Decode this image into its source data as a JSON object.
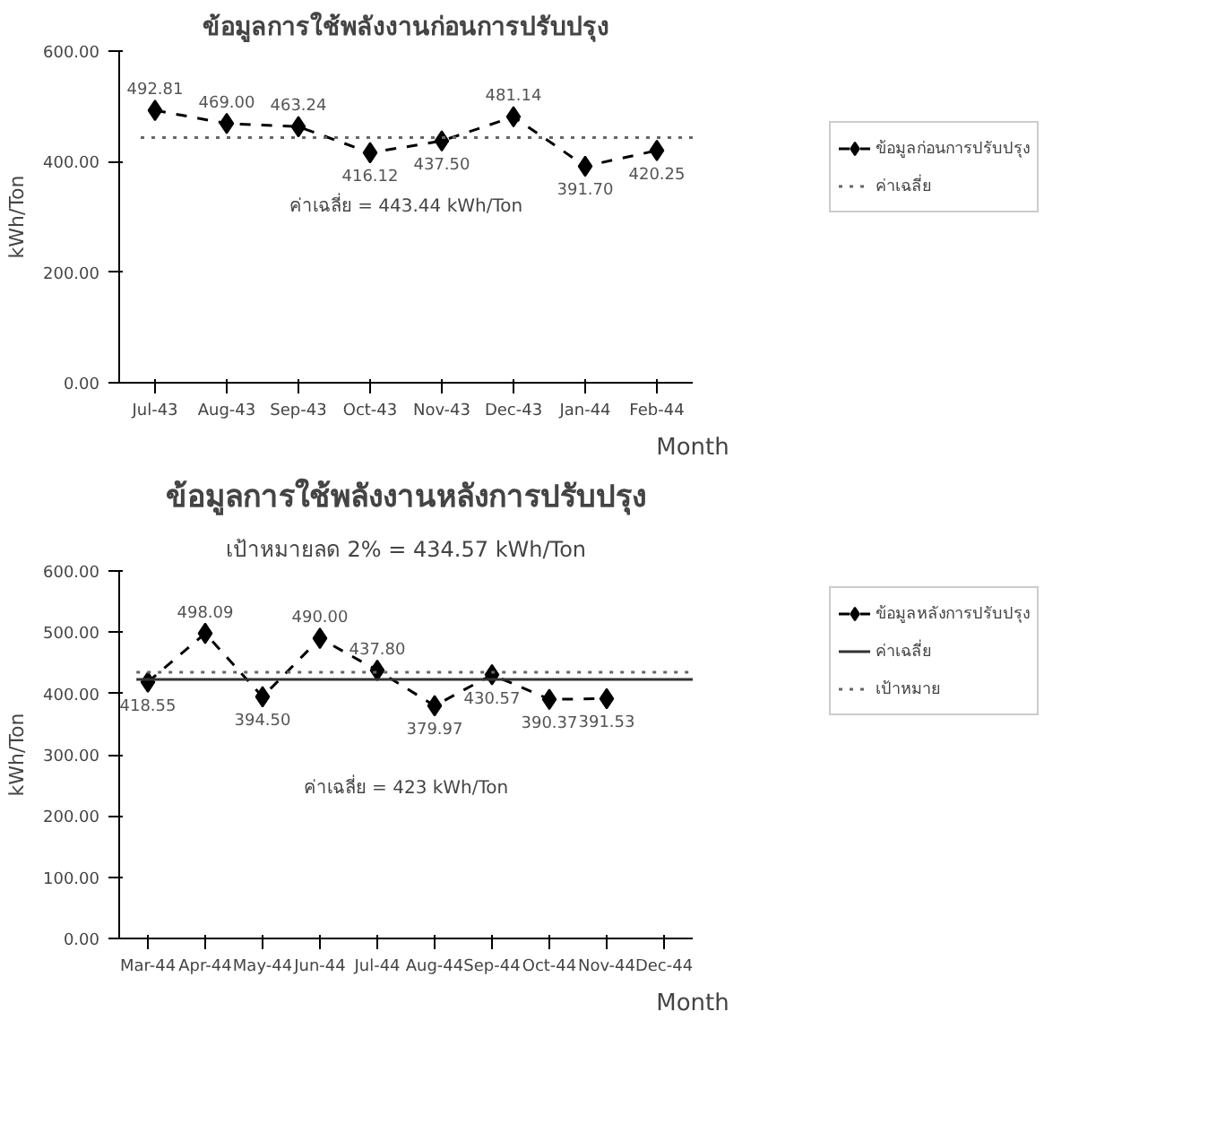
{
  "chart_data": [
    {
      "type": "line",
      "title": "ข้อมูลการใช้พลังงานก่อนการปรับปรุง",
      "ylabel": "kWh/Ton",
      "xlabel": "Month",
      "categories": [
        "Jul-43",
        "Aug-43",
        "Sep-43",
        "Oct-43",
        "Nov-43",
        "Dec-43",
        "Jan-44",
        "Feb-44"
      ],
      "series": [
        {
          "name": "ข้อมูลก่อนการปรับปรุง",
          "color": "#000000",
          "values": [
            492.81,
            469.0,
            463.24,
            416.12,
            437.5,
            481.14,
            391.7,
            420.25
          ],
          "value_labels": [
            "492.81",
            "469.00",
            "463.24",
            "416.12",
            "437.50",
            "481.14",
            "391.70",
            "420.25"
          ]
        }
      ],
      "ref_lines": [
        {
          "axis": "y",
          "value": 443.44,
          "label": "ค่าเฉลี่ย",
          "color": "#666666",
          "line_style": "dotted"
        }
      ],
      "annotations": [
        "ค่าเฉลี่ย = 443.44 kWh/Ton"
      ],
      "ylim": [
        0,
        600
      ],
      "yticks": [
        {
          "value": 0,
          "label": "0.00"
        },
        {
          "value": 200,
          "label": "200.00"
        },
        {
          "value": 400,
          "label": "400.00"
        },
        {
          "value": 600,
          "label": "600.00"
        }
      ],
      "marker": "diamond",
      "line_style": "dashed",
      "legend": "right",
      "grid": false
    },
    {
      "type": "line",
      "title": "ข้อมูลการใช้พลังงานหลังการปรับปรุง",
      "subtitle": "เป้าหมายลด 2% = 434.57 kWh/Ton",
      "ylabel": "kWh/Ton",
      "xlabel": "Month",
      "categories": [
        "Mar-44",
        "Apr-44",
        "May-44",
        "Jun-44",
        "Jul-44",
        "Aug-44",
        "Sep-44",
        "Oct-44",
        "Nov-44",
        "Dec-44"
      ],
      "series": [
        {
          "name": "ข้อมูลหลังการปรับปรุง",
          "color": "#000000",
          "values": [
            418.55,
            498.09,
            394.5,
            490.0,
            437.8,
            379.97,
            430.57,
            390.37,
            391.53,
            null
          ],
          "value_labels": [
            "418.55",
            "498.09",
            "394.50",
            "490.00",
            "437.80",
            "379.97",
            "430.57",
            "390.37",
            "391.53",
            null
          ]
        }
      ],
      "ref_lines": [
        {
          "axis": "y",
          "value": 423,
          "label": "ค่าเฉลี่ย",
          "color": "#333333",
          "line_style": "solid"
        },
        {
          "axis": "y",
          "value": 434.57,
          "label": "เป้าหมาย",
          "color": "#666666",
          "line_style": "dotted"
        }
      ],
      "annotations": [
        "ค่าเฉลี่ย = 423 kWh/Ton"
      ],
      "ylim": [
        0,
        600
      ],
      "yticks": [
        {
          "value": 0,
          "label": "0.00"
        },
        {
          "value": 100,
          "label": "100.00"
        },
        {
          "value": 200,
          "label": "200.00"
        },
        {
          "value": 300,
          "label": "300.00"
        },
        {
          "value": 400,
          "label": "400.00"
        },
        {
          "value": 500,
          "label": "500.00"
        },
        {
          "value": 600,
          "label": "600.00"
        }
      ],
      "marker": "diamond",
      "line_style": "dashed",
      "legend": "right",
      "grid": false
    }
  ]
}
